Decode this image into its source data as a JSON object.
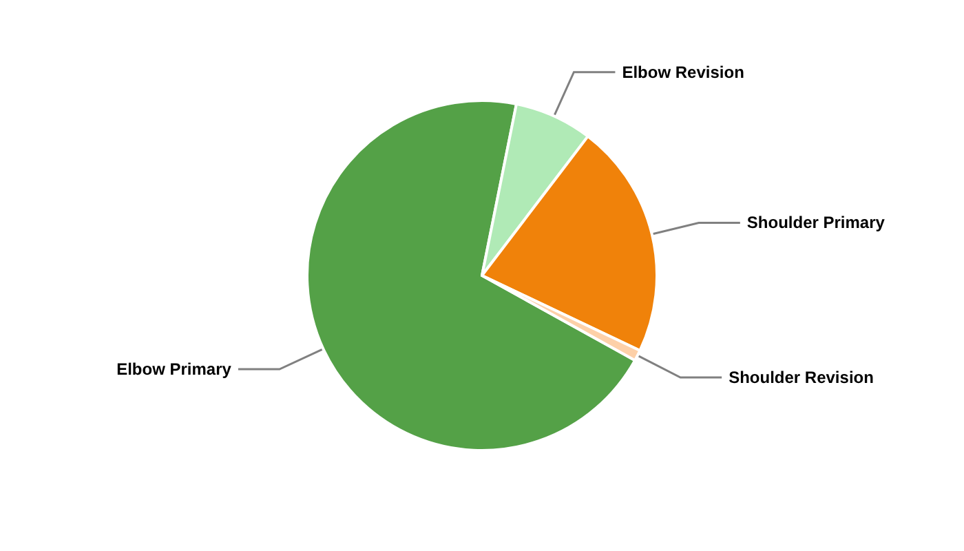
{
  "chart_data": {
    "type": "pie",
    "categories": [
      "Elbow Primary",
      "Elbow Revision",
      "Shoulder Primary",
      "Shoulder Revision"
    ],
    "values": [
      70.1,
      7.2,
      21.7,
      1.0
    ],
    "colors": [
      "#54a147",
      "#b0eab6",
      "#f0820a",
      "#fdd0a8"
    ]
  }
}
